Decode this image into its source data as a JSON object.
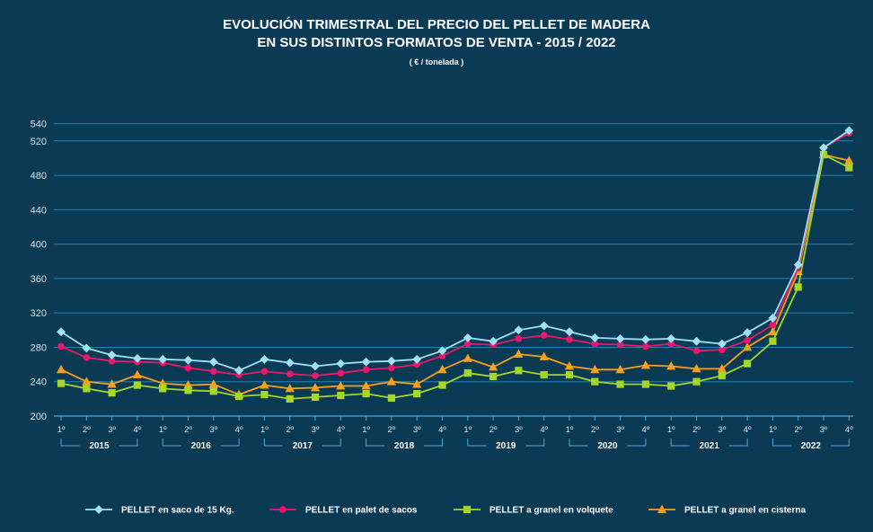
{
  "chart_data": {
    "type": "line",
    "title_line1": "EVOLUCIÓN TRIMESTRAL DEL PRECIO DEL PELLET DE MADERA",
    "title_line2": "EN SUS DISTINTOS FORMATOS DE VENTA - 2015 / 2022",
    "subtitle": "( € / tonelada )",
    "ylim": [
      200,
      548
    ],
    "yticks": [
      200,
      240,
      280,
      320,
      360,
      400,
      440,
      480,
      520,
      540
    ],
    "quarters": [
      "1º",
      "2º",
      "3º",
      "4º",
      "1º",
      "2º",
      "3º",
      "4º",
      "1º",
      "2º",
      "3º",
      "4º",
      "1º",
      "2º",
      "3º",
      "4º",
      "1º",
      "2º",
      "3º",
      "4º",
      "1º",
      "2º",
      "3º",
      "4º",
      "1º",
      "2º",
      "3º",
      "4º",
      "1º",
      "2º",
      "3º",
      "4º"
    ],
    "years": [
      "2015",
      "2016",
      "2017",
      "2018",
      "2019",
      "2020",
      "2021",
      "2022"
    ],
    "series": [
      {
        "name": "PELLET en saco de 15 Kg.",
        "color": "#9fe2f5",
        "marker": "diamond",
        "values": [
          298,
          279,
          271,
          267,
          266,
          265,
          263,
          253,
          266,
          262,
          258,
          261,
          263,
          264,
          266,
          276,
          291,
          287,
          300,
          305,
          298,
          291,
          290,
          289,
          290,
          287,
          284,
          297,
          314,
          376,
          512,
          532
        ]
      },
      {
        "name": "PELLET  en palet de sacos",
        "color": "#e8196a",
        "marker": "circle",
        "values": [
          281,
          268,
          264,
          263,
          262,
          256,
          252,
          248,
          252,
          249,
          247,
          250,
          254,
          256,
          260,
          270,
          284,
          283,
          290,
          294,
          289,
          284,
          283,
          281,
          284,
          276,
          277,
          288,
          306,
          372,
          512,
          529
        ]
      },
      {
        "name": "PELLET a granel en volquete",
        "color": "#a6d62a",
        "marker": "square",
        "values": [
          238,
          232,
          227,
          236,
          232,
          230,
          229,
          223,
          225,
          220,
          222,
          224,
          226,
          221,
          226,
          236,
          250,
          246,
          253,
          248,
          248,
          240,
          237,
          237,
          235,
          240,
          247,
          261,
          287,
          350,
          504,
          489
        ]
      },
      {
        "name": "PELLET a granel en cisterna",
        "color": "#f5a11c",
        "marker": "triangle",
        "values": [
          254,
          240,
          237,
          248,
          238,
          236,
          237,
          225,
          236,
          232,
          233,
          235,
          235,
          240,
          237,
          254,
          267,
          257,
          272,
          269,
          258,
          254,
          254,
          259,
          258,
          255,
          255,
          280,
          298,
          368,
          504,
          497
        ]
      }
    ]
  }
}
